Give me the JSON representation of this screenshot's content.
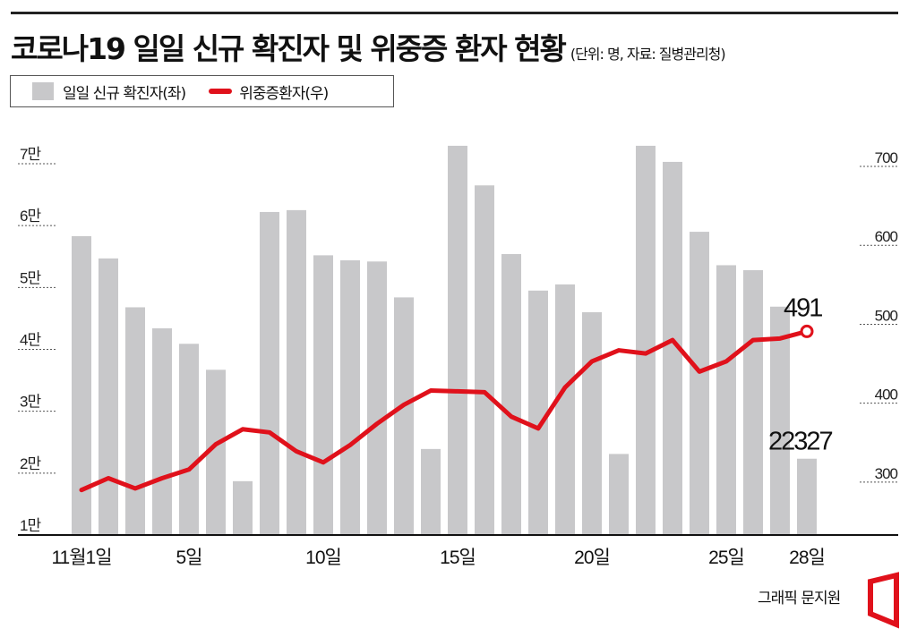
{
  "header": {
    "title": "코로나19 일일 신규 확진자 및 위중증 환자 현황",
    "unit_note": "(단위: 명, 자료: 질병관리청)"
  },
  "legend": {
    "bar_label": "일일 신규 확진자(좌)",
    "line_label": "위중증환자(우)"
  },
  "credit": "그래픽 문지원",
  "colors": {
    "bar": "#c8c8ca",
    "line": "#e0111b",
    "axis": "#111111"
  },
  "chart_data": {
    "type": "bar+line",
    "title": "코로나19 일일 신규 확진자 및 위중증 환자 현황",
    "x": [
      1,
      2,
      3,
      4,
      5,
      6,
      7,
      8,
      9,
      10,
      11,
      12,
      13,
      14,
      15,
      16,
      17,
      18,
      19,
      20,
      21,
      22,
      23,
      24,
      25,
      26,
      27,
      28
    ],
    "x_tick_labels": [
      {
        "day": 1,
        "label": "11월1일"
      },
      {
        "day": 5,
        "label": "5일"
      },
      {
        "day": 10,
        "label": "10일"
      },
      {
        "day": 15,
        "label": "15일"
      },
      {
        "day": 20,
        "label": "20일"
      },
      {
        "day": 25,
        "label": "25일"
      },
      {
        "day": 28,
        "label": "28일"
      }
    ],
    "series": [
      {
        "name": "일일 신규 확진자(좌)",
        "type": "bar",
        "axis": "left",
        "values": [
          58300,
          54700,
          46800,
          43400,
          40900,
          36700,
          18700,
          62200,
          62500,
          55200,
          54400,
          54200,
          48400,
          23900,
          72900,
          66500,
          55400,
          49500,
          50500,
          46000,
          23100,
          72900,
          70300,
          59000,
          53600,
          52800,
          46900,
          22327
        ]
      },
      {
        "name": "위중증환자(우)",
        "type": "line",
        "axis": "right",
        "values": [
          290,
          305,
          292,
          305,
          316,
          348,
          367,
          363,
          339,
          325,
          347,
          374,
          398,
          416,
          415,
          414,
          383,
          368,
          420,
          453,
          467,
          463,
          480,
          440,
          453,
          480,
          482,
          491
        ]
      }
    ],
    "left_axis": {
      "ticks": [
        {
          "v": 10000,
          "label": "1만"
        },
        {
          "v": 20000,
          "label": "2만"
        },
        {
          "v": 30000,
          "label": "3만"
        },
        {
          "v": 40000,
          "label": "4만"
        },
        {
          "v": 50000,
          "label": "5만"
        },
        {
          "v": 60000,
          "label": "6만"
        },
        {
          "v": 70000,
          "label": "7만"
        }
      ],
      "ylim": [
        10000,
        70000
      ]
    },
    "right_axis": {
      "ticks": [
        {
          "v": 300,
          "label": "300"
        },
        {
          "v": 400,
          "label": "400"
        },
        {
          "v": 500,
          "label": "500"
        },
        {
          "v": 600,
          "label": "600"
        },
        {
          "v": 700,
          "label": "700"
        }
      ],
      "ylim": [
        233,
        700
      ]
    },
    "annotations": [
      {
        "series": "위중증환자(우)",
        "day": 28,
        "text": "491"
      },
      {
        "series": "일일 신규 확진자(좌)",
        "day": 28,
        "text": "22327"
      }
    ],
    "grid": "dotted tick lines at axis labels"
  }
}
